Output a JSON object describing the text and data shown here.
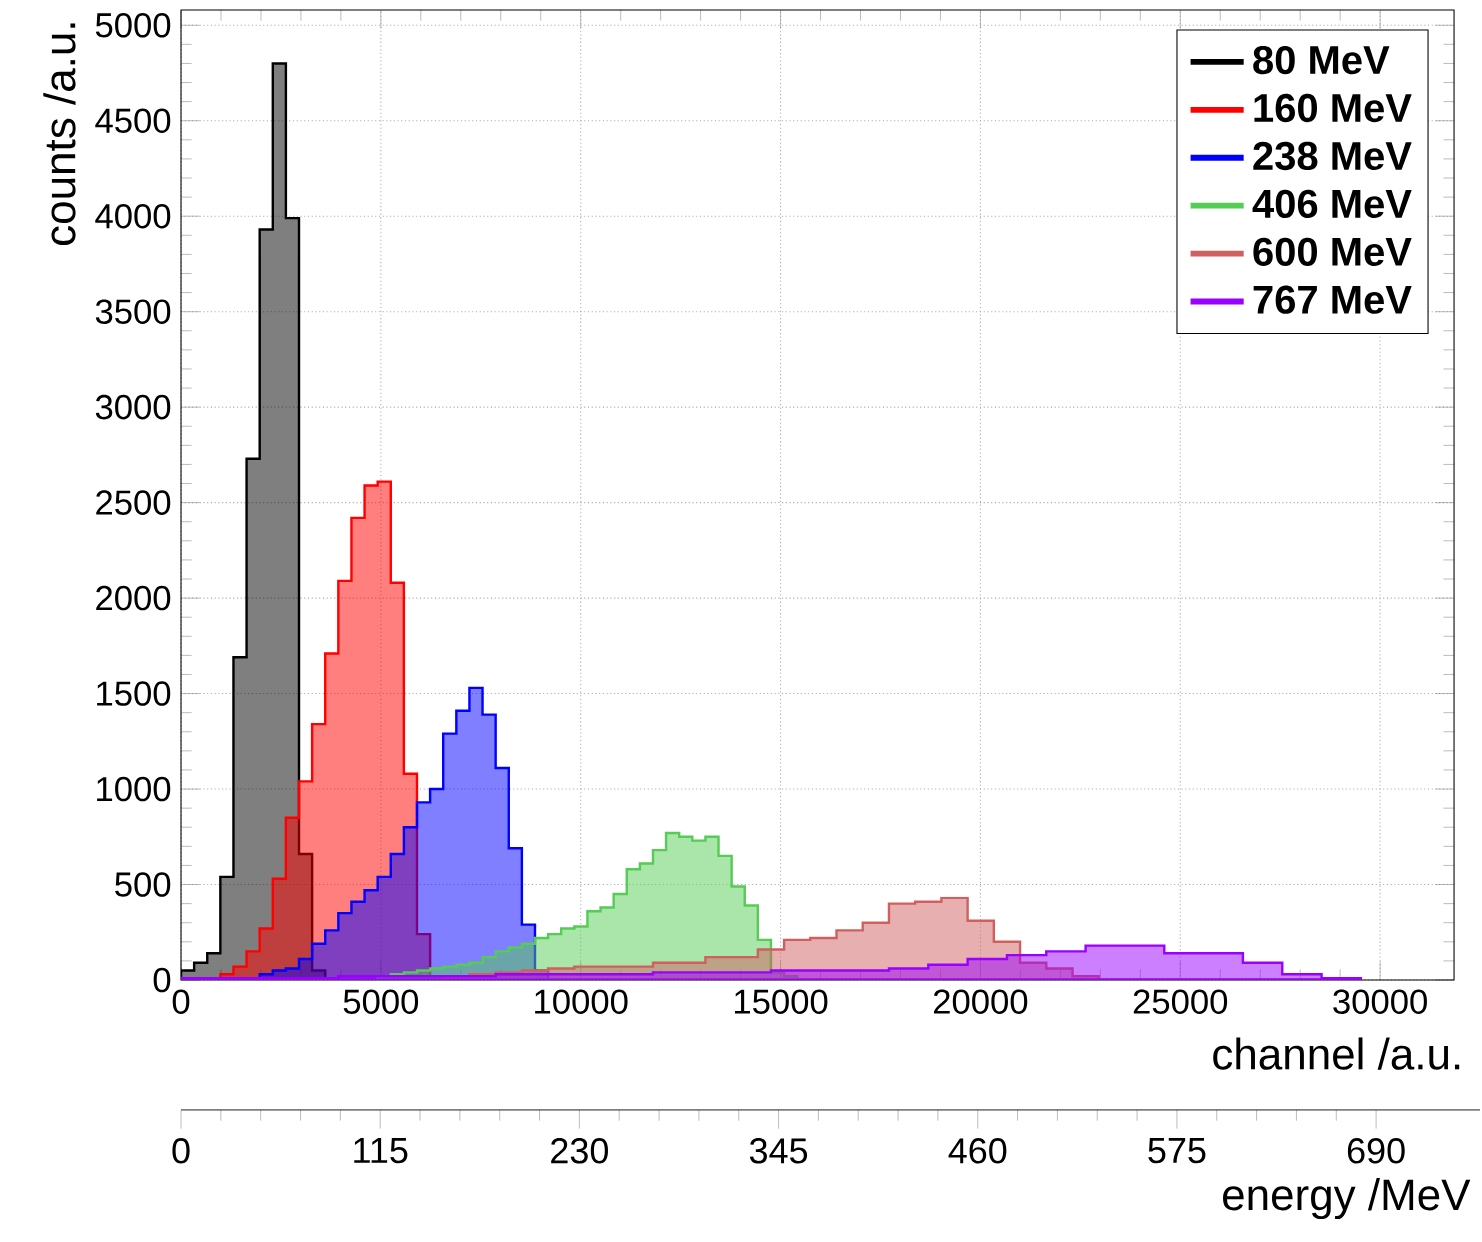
{
  "chart_data": {
    "type": "histogram",
    "xlabel": "channel /a.u.",
    "ylabel": "counts /a.u.",
    "x2label": "energy /MeV",
    "xlim": [
      0,
      31850
    ],
    "ylim": [
      0,
      5080
    ],
    "xticks": [
      0,
      5000,
      10000,
      15000,
      20000,
      25000,
      30000
    ],
    "yticks": [
      0,
      500,
      1000,
      1500,
      2000,
      2500,
      3000,
      3500,
      4000,
      4500,
      5000
    ],
    "x2lim": [
      0,
      750
    ],
    "x2ticks": [
      0,
      115,
      230,
      345,
      460,
      575,
      690
    ],
    "grid": true,
    "legend": "top right",
    "bins": [
      0,
      328,
      656,
      984,
      1312,
      1640,
      1968,
      2296,
      2624,
      2952,
      3280,
      3608,
      3936,
      4264,
      4592,
      4920,
      5248,
      5576,
      5904,
      6232,
      6560,
      6888,
      7216,
      7544,
      7872,
      8200,
      8528,
      8856,
      9184,
      9512,
      9840,
      10168,
      10496,
      10824,
      11152,
      11480,
      11808,
      12136,
      12464,
      12792,
      13120,
      13448,
      13776,
      14104,
      14432,
      14760,
      15088,
      15416,
      15744,
      16072,
      16400,
      16728,
      17056,
      17384,
      17712,
      18040,
      18368,
      18696,
      19024,
      19352,
      19680,
      20008,
      20336,
      20664,
      20992,
      21320,
      21648,
      21976,
      22304,
      22632,
      22960,
      23288,
      23616,
      23944,
      24272,
      24600,
      24928,
      25256,
      25584,
      25912,
      26240,
      26568,
      26896,
      27224,
      27552,
      27880,
      28208,
      28536,
      28864,
      29192,
      29520
    ],
    "series": [
      {
        "name": "80 MeV",
        "color": "#000000",
        "values": [
          50,
          90,
          140,
          540,
          1690,
          2730,
          3930,
          4800,
          3990,
          660,
          50,
          0,
          0,
          0,
          0,
          0,
          0,
          0,
          0,
          0,
          0,
          0,
          0,
          0,
          0,
          0,
          0,
          0,
          0,
          0,
          0,
          0,
          0,
          0,
          0,
          0,
          0,
          0,
          0,
          0,
          0,
          0,
          0,
          0,
          0,
          0,
          0,
          0,
          0,
          0,
          0,
          0,
          0,
          0,
          0,
          0,
          0,
          0,
          0,
          0,
          0,
          0,
          0,
          0,
          0,
          0,
          0,
          0,
          0,
          0,
          0,
          0,
          0,
          0,
          0,
          0,
          0,
          0,
          0,
          0,
          0,
          0,
          0,
          0,
          0,
          0,
          0,
          0,
          0,
          0
        ]
      },
      {
        "name": "160 MeV",
        "color": "#ff0000",
        "values": [
          0,
          0,
          0,
          30,
          70,
          150,
          270,
          530,
          850,
          1040,
          1340,
          1710,
          2090,
          2420,
          2590,
          2610,
          2080,
          1080,
          240,
          20,
          0,
          0,
          0,
          0,
          0,
          0,
          0,
          0,
          0,
          0,
          0,
          0,
          0,
          0,
          0,
          0,
          0,
          0,
          0,
          0,
          0,
          0,
          0,
          0,
          0,
          0,
          0,
          0,
          0,
          0,
          0,
          0,
          0,
          0,
          0,
          0,
          0,
          0,
          0,
          0,
          0,
          0,
          0,
          0,
          0,
          0,
          0,
          0,
          0,
          0,
          0,
          0,
          0,
          0,
          0,
          0,
          0,
          0,
          0,
          0,
          0,
          0,
          0,
          0,
          0,
          0,
          0,
          0,
          0,
          0
        ]
      },
      {
        "name": "238 MeV",
        "color": "#0000ff",
        "values": [
          0,
          0,
          0,
          0,
          0,
          0,
          30,
          50,
          60,
          110,
          190,
          260,
          350,
          410,
          470,
          540,
          660,
          800,
          930,
          1000,
          1290,
          1410,
          1530,
          1390,
          1110,
          690,
          290,
          50,
          0,
          0,
          0,
          0,
          0,
          0,
          0,
          0,
          0,
          0,
          0,
          0,
          0,
          0,
          0,
          0,
          0,
          0,
          0,
          0,
          0,
          0,
          0,
          0,
          0,
          0,
          0,
          0,
          0,
          0,
          0,
          0,
          0,
          0,
          0,
          0,
          0,
          0,
          0,
          0,
          0,
          0,
          0,
          0,
          0,
          0,
          0,
          0,
          0,
          0,
          0,
          0,
          0,
          0,
          0,
          0,
          0,
          0,
          0,
          0,
          0,
          0
        ]
      },
      {
        "name": "406 MeV",
        "color": "#55cc55",
        "values": [
          0,
          0,
          0,
          0,
          0,
          0,
          0,
          0,
          0,
          0,
          0,
          0,
          0,
          0,
          0,
          20,
          30,
          40,
          50,
          60,
          70,
          80,
          90,
          120,
          150,
          170,
          190,
          220,
          240,
          270,
          280,
          360,
          380,
          450,
          580,
          610,
          680,
          770,
          750,
          730,
          750,
          650,
          490,
          390,
          210,
          40,
          20,
          0,
          0,
          0,
          0,
          0,
          0,
          0,
          0,
          0,
          0,
          0,
          0,
          0,
          0,
          0,
          0,
          0,
          0,
          0,
          0,
          0,
          0,
          0,
          0,
          0,
          0,
          0,
          0,
          0,
          0,
          0,
          0,
          0,
          0,
          0,
          0,
          0,
          0,
          0,
          0,
          0,
          0,
          0
        ]
      },
      {
        "name": "600 MeV",
        "color": "#d06060",
        "values": [
          0,
          0,
          0,
          0,
          0,
          0,
          0,
          0,
          0,
          0,
          0,
          0,
          0,
          0,
          0,
          0,
          0,
          0,
          0,
          0,
          20,
          20,
          30,
          30,
          40,
          40,
          50,
          50,
          60,
          60,
          70,
          70,
          70,
          70,
          70,
          70,
          90,
          90,
          90,
          90,
          120,
          120,
          120,
          120,
          160,
          160,
          210,
          210,
          220,
          220,
          260,
          260,
          300,
          300,
          400,
          400,
          410,
          410,
          430,
          430,
          310,
          310,
          200,
          200,
          90,
          90,
          60,
          60,
          20,
          20,
          0,
          0,
          0,
          0,
          0,
          0,
          0,
          0,
          0,
          0,
          0,
          0,
          0,
          0,
          0,
          0,
          0,
          0,
          0,
          0
        ]
      },
      {
        "name": "767 MeV",
        "color": "#9900ff",
        "values": [
          10,
          10,
          10,
          10,
          10,
          10,
          10,
          10,
          10,
          10,
          10,
          10,
          20,
          20,
          20,
          20,
          20,
          20,
          20,
          20,
          20,
          20,
          20,
          20,
          30,
          30,
          30,
          30,
          30,
          30,
          30,
          30,
          30,
          30,
          30,
          30,
          40,
          40,
          40,
          40,
          40,
          40,
          40,
          40,
          40,
          50,
          50,
          50,
          50,
          50,
          50,
          50,
          50,
          50,
          60,
          60,
          60,
          80,
          80,
          80,
          110,
          110,
          110,
          130,
          130,
          130,
          150,
          150,
          150,
          180,
          180,
          180,
          180,
          180,
          180,
          140,
          140,
          140,
          140,
          140,
          140,
          90,
          90,
          90,
          30,
          30,
          30,
          10,
          10,
          10
        ]
      }
    ]
  }
}
